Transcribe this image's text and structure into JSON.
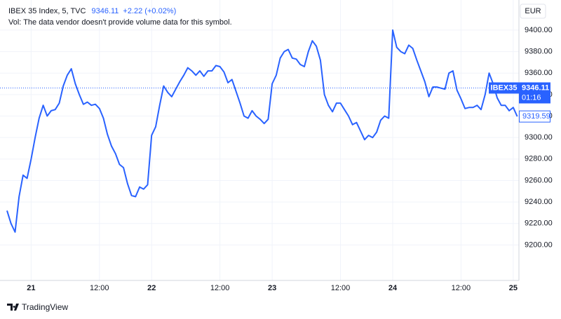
{
  "chart_data": {
    "type": "line",
    "title": "IBEX 35 Index, 5, TVC",
    "price": 9346.11,
    "change": "+2.22 (+0.02%)",
    "volume_note": "Vol: The data vendor doesn't provide volume data for this symbol.",
    "currency": "EUR",
    "symbol_label": "IBEX35",
    "countdown": "01:16",
    "brand": "TradingView",
    "color": "#2962ff",
    "grid": true,
    "categories": [
      null,
      null,
      null,
      null,
      null,
      null,
      "21",
      null,
      null,
      null,
      null,
      null,
      null,
      null,
      null,
      null,
      null,
      null,
      null,
      null,
      null,
      null,
      null,
      "12:00",
      null,
      null,
      null,
      null,
      null,
      null,
      null,
      null,
      null,
      null,
      null,
      null,
      "22",
      null,
      null,
      null,
      null,
      null,
      null,
      null,
      null,
      null,
      null,
      null,
      null,
      null,
      null,
      null,
      null,
      "12:00",
      null,
      null,
      null,
      null,
      null,
      null,
      null,
      null,
      null,
      null,
      null,
      null,
      "23",
      null,
      null,
      null,
      null,
      null,
      null,
      null,
      null,
      null,
      null,
      null,
      null,
      null,
      null,
      null,
      null,
      "12:00",
      null,
      null,
      null,
      null,
      null,
      null,
      null,
      null,
      null,
      null,
      null,
      null,
      "24",
      null,
      null,
      null,
      null,
      null,
      null,
      null,
      null,
      null,
      null,
      null,
      null,
      null,
      null,
      null,
      null,
      "12:00",
      null,
      null,
      null,
      null,
      null,
      null,
      null,
      null,
      null,
      null,
      null,
      null,
      "25",
      null
    ],
    "values": [
      9232,
      9220,
      9212,
      9245,
      9265,
      9262,
      9280,
      9300,
      9318,
      9330,
      9320,
      9325,
      9326,
      9332,
      9348,
      9358,
      9364,
      9350,
      9340,
      9331,
      9333,
      9330,
      9331,
      9327,
      9318,
      9303,
      9292,
      9285,
      9275,
      9272,
      9257,
      9246,
      9245,
      9254,
      9252,
      9256,
      9302,
      9310,
      9330,
      9348,
      9342,
      9338,
      9345,
      9352,
      9358,
      9365,
      9362,
      9358,
      9362,
      9357,
      9362,
      9362,
      9367,
      9366,
      9361,
      9351,
      9354,
      9343,
      9332,
      9320,
      9318,
      9325,
      9320,
      9317,
      9313,
      9317,
      9350,
      9358,
      9374,
      9380,
      9382,
      9374,
      9373,
      9368,
      9366,
      9380,
      9390,
      9385,
      9372,
      9340,
      9330,
      9324,
      9332,
      9332,
      9326,
      9320,
      9312,
      9314,
      9306,
      9298,
      9302,
      9300,
      9305,
      9316,
      9320,
      9318,
      9400,
      9384,
      9380,
      9378,
      9386,
      9383,
      9372,
      9362,
      9352,
      9338,
      9347,
      9347,
      9346,
      9345,
      9360,
      9362,
      9344,
      9336,
      9327,
      9328,
      9328,
      9330,
      9326,
      9340,
      9360,
      9350,
      9337,
      9330,
      9330,
      9325,
      9328,
      9319.59
    ],
    "ylim": [
      9167,
      9428
    ],
    "yticks": [
      {
        "value": 9200,
        "label": "9200.00"
      },
      {
        "value": 9220,
        "label": "9220.00"
      },
      {
        "value": 9240,
        "label": "9240.00"
      },
      {
        "value": 9260,
        "label": "9260.00"
      },
      {
        "value": 9280,
        "label": "9280.00"
      },
      {
        "value": 9300,
        "label": "9300.00"
      },
      {
        "value": 9320,
        "label": "9320.00"
      },
      {
        "value": 9340,
        "label": "9340.00"
      },
      {
        "value": 9360,
        "label": "9360.00"
      },
      {
        "value": 9380,
        "label": "9380.00"
      },
      {
        "value": 9400,
        "label": "9400.00"
      }
    ]
  }
}
